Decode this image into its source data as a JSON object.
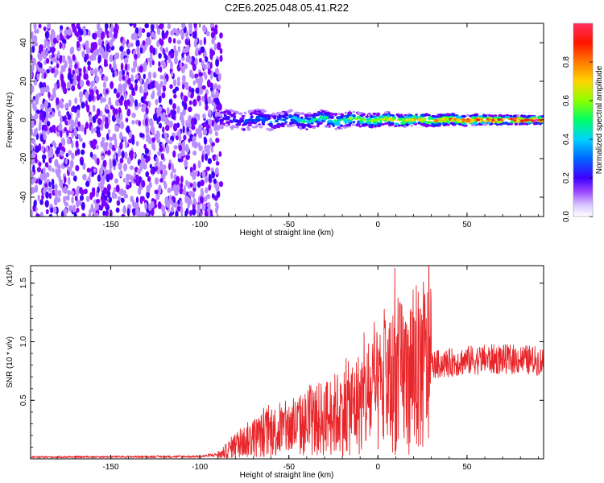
{
  "title": "C2E6.2025.048.05.41.R22",
  "colors": {
    "accent": "#e8262a"
  },
  "chart_data": [
    {
      "type": "heatmap",
      "title": "C2E6.2025.048.05.41.R22",
      "xlabel": "Height of straight line (km)",
      "ylabel": "Frequency (Hz)",
      "xlim": [
        -195,
        93
      ],
      "ylim": [
        -50,
        50
      ],
      "xticks": [
        "-150",
        "-100",
        "-50",
        "0",
        "50"
      ],
      "yticks": [
        "40",
        "20",
        "0",
        "-20",
        "-40"
      ],
      "colorbar": {
        "label": "Normalized spectral amplitude",
        "range": [
          0.0,
          1.0
        ],
        "ticks": [
          "0.0",
          "0.2",
          "0.4",
          "0.6",
          "0.8"
        ],
        "colormap": [
          "#ffffff",
          "#b98cff",
          "#7a00ff",
          "#3f00ff",
          "#0044ff",
          "#00c8ff",
          "#00ff66",
          "#8cff00",
          "#ffd400",
          "#ff7a00",
          "#ff2200",
          "#ff0050",
          "#ff30b0"
        ]
      },
      "features": {
        "noise_region_x": [
          -195,
          -88
        ],
        "signal_band_x": [
          -90,
          93
        ],
        "signal_center_hz": 0,
        "signal_half_width_hz": [
          5,
          2
        ]
      }
    },
    {
      "type": "line",
      "xlabel": "Height of straight line (km)",
      "ylabel": "SNR (10 * v/v)",
      "multiplier_label": "(x10",
      "multiplier_exp": "4",
      "xlim": [
        -195,
        93
      ],
      "ylim": [
        0,
        16500
      ],
      "xticks": [
        "-150",
        "-100",
        "-50",
        "0",
        "50"
      ],
      "yticks": [
        "0.5",
        "1.0",
        "1.5"
      ],
      "series": [
        {
          "color": "#e8262a",
          "envelope_x": [
            -195,
            -100,
            -88,
            -80,
            -70,
            -60,
            -50,
            -40,
            -30,
            -20,
            -10,
            0,
            10,
            20,
            30,
            40,
            50,
            60,
            70,
            80,
            93
          ],
          "envelope_mean": [
            150,
            200,
            400,
            1200,
            1800,
            2300,
            2600,
            3000,
            3500,
            4000,
            4800,
            5600,
            6800,
            7500,
            8000,
            8200,
            8400,
            8500,
            8500,
            8500,
            8300
          ],
          "peaks": [
            [
              9.5,
              16300
            ],
            [
              21.5,
              14800
            ],
            [
              4,
              11800
            ],
            [
              -3,
              9800
            ],
            [
              12,
              10800
            ],
            [
              23,
              12800
            ],
            [
              17,
              11000
            ]
          ]
        }
      ]
    }
  ]
}
